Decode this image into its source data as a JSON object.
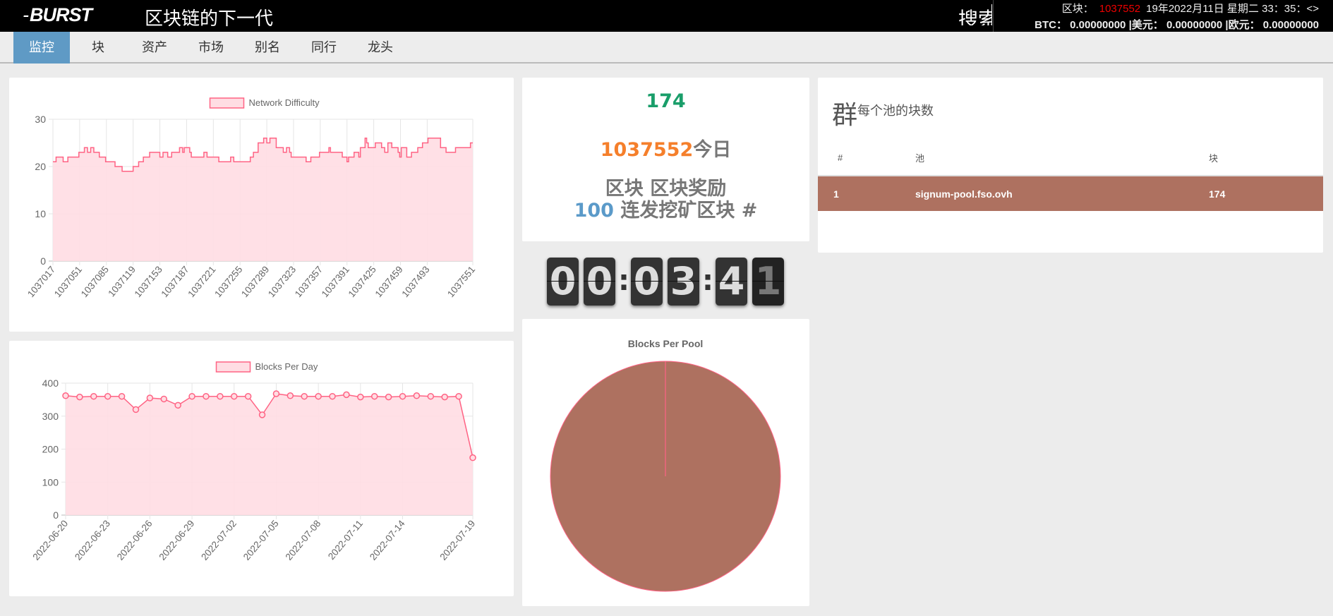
{
  "header": {
    "logo": "BURST",
    "title": "区块链的下一代",
    "search_label": "搜索",
    "block_label": "区块：",
    "block_number": "1037552",
    "datetime": "19年2022月11日 星期二 33：35：<>",
    "btc_label": "BTC：",
    "btc_value": "0.00000000",
    "usd_label": "|美元：",
    "usd_value": "0.00000000",
    "eur_label": "|欧元：",
    "eur_value": "0.00000000"
  },
  "nav": {
    "tabs": [
      "监控",
      "块",
      "资产",
      "市场",
      "别名",
      "同行",
      "龙头"
    ],
    "active": 0
  },
  "stats": {
    "pool_blocks": "174",
    "block_height": "1037552",
    "today_label": "今日",
    "line3": "区块 区块奖励",
    "count": "100",
    "line4": "连发挖矿区块 #"
  },
  "clock": {
    "digits": [
      "0",
      "0",
      "0",
      "3",
      "4",
      "1"
    ]
  },
  "pools": {
    "title_big": "群",
    "title_small": "每个池的块数",
    "headers": [
      "#",
      "池",
      "块"
    ],
    "rows": [
      {
        "rank": "1",
        "pool": "signum-pool.fso.ovh",
        "blocks": "174"
      }
    ]
  },
  "colors": {
    "line": "#ff6384",
    "fill": "#ffdde3",
    "pool": "#ae7160",
    "green": "#1a9e6a",
    "orange": "#f57f2b",
    "blue": "#5b9ac9",
    "gray": "#777777"
  },
  "chart_data": [
    {
      "type": "line",
      "stepped": true,
      "legend": "Network Difficulty",
      "legend_position": "top",
      "ylim": [
        0,
        30
      ],
      "yticks": [
        0,
        10,
        20,
        30
      ],
      "xticks": [
        1037017,
        1037051,
        1037085,
        1037119,
        1037153,
        1037187,
        1037221,
        1037255,
        1037289,
        1037323,
        1037357,
        1037391,
        1037425,
        1037459,
        1037493,
        1037551
      ],
      "xlim": [
        1037017,
        1037551
      ],
      "points": [
        [
          1037017,
          21
        ],
        [
          1037021,
          22
        ],
        [
          1037030,
          21
        ],
        [
          1037036,
          22
        ],
        [
          1037050,
          23
        ],
        [
          1037057,
          24
        ],
        [
          1037061,
          23
        ],
        [
          1037065,
          24
        ],
        [
          1037069,
          23
        ],
        [
          1037076,
          22
        ],
        [
          1037084,
          21
        ],
        [
          1037096,
          20
        ],
        [
          1037105,
          19
        ],
        [
          1037119,
          20
        ],
        [
          1037126,
          21
        ],
        [
          1037132,
          22
        ],
        [
          1037140,
          23
        ],
        [
          1037153,
          22
        ],
        [
          1037157,
          23
        ],
        [
          1037163,
          22
        ],
        [
          1037168,
          23
        ],
        [
          1037178,
          24
        ],
        [
          1037182,
          23
        ],
        [
          1037184,
          24
        ],
        [
          1037191,
          23
        ],
        [
          1037193,
          22
        ],
        [
          1037209,
          23
        ],
        [
          1037213,
          22
        ],
        [
          1037228,
          21
        ],
        [
          1037243,
          22
        ],
        [
          1037247,
          21
        ],
        [
          1037268,
          22
        ],
        [
          1037272,
          23
        ],
        [
          1037278,
          25
        ],
        [
          1037285,
          26
        ],
        [
          1037289,
          25
        ],
        [
          1037293,
          26
        ],
        [
          1037301,
          24
        ],
        [
          1037310,
          23
        ],
        [
          1037314,
          24
        ],
        [
          1037318,
          23
        ],
        [
          1037320,
          22
        ],
        [
          1037339,
          21
        ],
        [
          1037345,
          22
        ],
        [
          1037356,
          23
        ],
        [
          1037368,
          24
        ],
        [
          1037370,
          23
        ],
        [
          1037385,
          22
        ],
        [
          1037391,
          21
        ],
        [
          1037393,
          22
        ],
        [
          1037400,
          23
        ],
        [
          1037406,
          22
        ],
        [
          1037408,
          24
        ],
        [
          1037414,
          26
        ],
        [
          1037416,
          25
        ],
        [
          1037418,
          24
        ],
        [
          1037427,
          25
        ],
        [
          1037435,
          24
        ],
        [
          1037439,
          23
        ],
        [
          1037443,
          25
        ],
        [
          1037448,
          24
        ],
        [
          1037456,
          23
        ],
        [
          1037458,
          22
        ],
        [
          1037460,
          24
        ],
        [
          1037467,
          22
        ],
        [
          1037473,
          23
        ],
        [
          1037481,
          24
        ],
        [
          1037487,
          25
        ],
        [
          1037494,
          26
        ],
        [
          1037508,
          26
        ],
        [
          1037510,
          24
        ],
        [
          1037517,
          23
        ],
        [
          1037529,
          24
        ],
        [
          1037548,
          25
        ],
        [
          1037551,
          25
        ]
      ]
    },
    {
      "type": "line",
      "legend": "Blocks Per Day",
      "legend_position": "top",
      "ylim": [
        0,
        400
      ],
      "yticks": [
        0,
        100,
        200,
        300,
        400
      ],
      "x": [
        "2022-06-20",
        "2022-06-21",
        "2022-06-22",
        "2022-06-23",
        "2022-06-24",
        "2022-06-25",
        "2022-06-26",
        "2022-06-27",
        "2022-06-28",
        "2022-06-29",
        "2022-06-30",
        "2022-07-01",
        "2022-07-02",
        "2022-07-03",
        "2022-07-04",
        "2022-07-05",
        "2022-07-06",
        "2022-07-07",
        "2022-07-08",
        "2022-07-09",
        "2022-07-10",
        "2022-07-11",
        "2022-07-12",
        "2022-07-13",
        "2022-07-14",
        "2022-07-15",
        "2022-07-16",
        "2022-07-17",
        "2022-07-18",
        "2022-07-19"
      ],
      "values": [
        362,
        358,
        360,
        360,
        360,
        320,
        355,
        352,
        333,
        360,
        360,
        360,
        360,
        360,
        304,
        368,
        362,
        360,
        360,
        360,
        365,
        358,
        360,
        358,
        360,
        362,
        360,
        358,
        360,
        174
      ],
      "xticks": [
        "2022-06-20",
        "2022-06-23",
        "2022-06-26",
        "2022-06-29",
        "2022-07-02",
        "2022-07-05",
        "2022-07-08",
        "2022-07-11",
        "2022-07-14",
        "2022-07-19"
      ]
    },
    {
      "type": "pie",
      "title": "Blocks Per Pool",
      "slices": [
        {
          "label": "signum-pool.fso.ovh",
          "value": 174
        }
      ]
    }
  ]
}
